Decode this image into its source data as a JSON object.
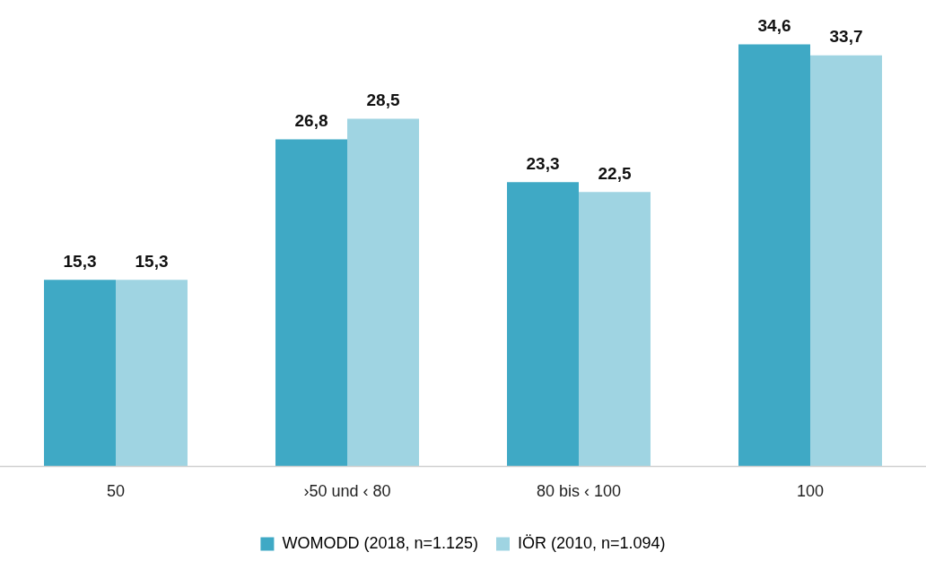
{
  "chart_data": {
    "type": "bar",
    "categories": [
      "50",
      "›50 und ‹ 80",
      "80 bis ‹ 100",
      "100"
    ],
    "series": [
      {
        "name": "WOMODD (2018, n=1.125)",
        "color": "#3fa9c5",
        "values": [
          15.3,
          26.8,
          23.3,
          34.6
        ],
        "value_labels": [
          "15,3",
          "26,8",
          "23,3",
          "34,6"
        ]
      },
      {
        "name": "IÖR (2010, n=1.094)",
        "color": "#9fd4e2",
        "values": [
          15.3,
          28.5,
          22.5,
          33.7
        ],
        "value_labels": [
          "15,3",
          "28,5",
          "22,5",
          "33,7"
        ]
      }
    ],
    "tick_labels": "x",
    "grid": false,
    "legend": "bottom"
  }
}
